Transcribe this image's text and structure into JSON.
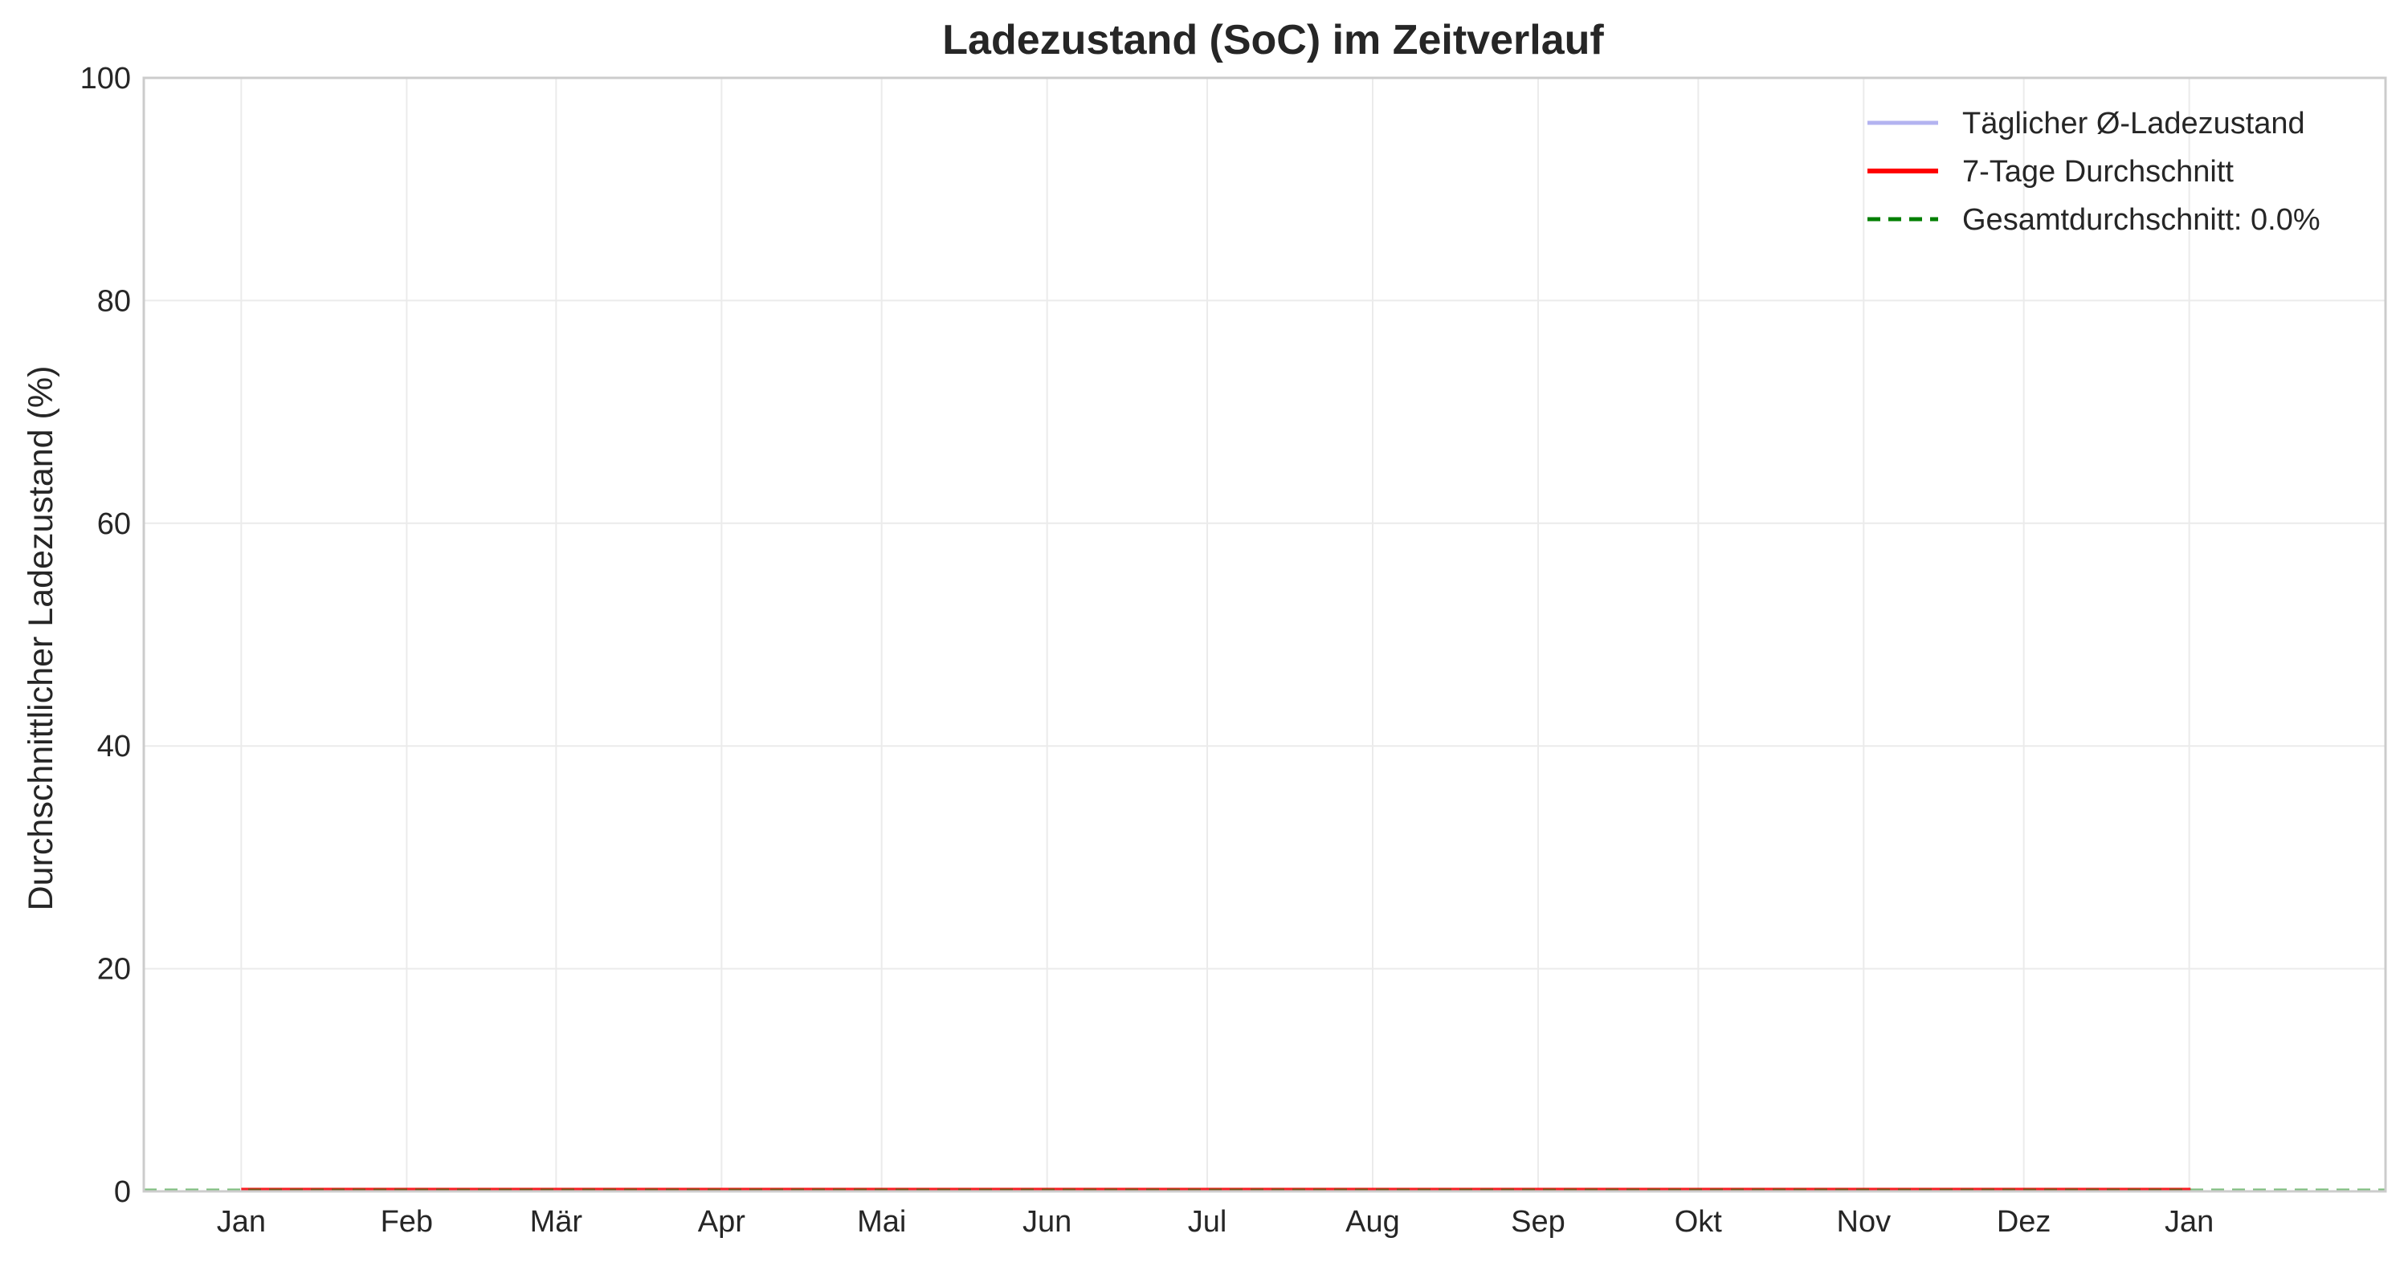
{
  "chart_data": {
    "type": "line",
    "title": "Ladezustand (SoC) im Zeitverlauf",
    "xlabel": "",
    "ylabel": "Durchschnittlicher Ladezustand (%)",
    "ylim": [
      0,
      100
    ],
    "yticks": [
      0,
      20,
      40,
      60,
      80,
      100
    ],
    "xlim": [
      -0.6,
      13.2
    ],
    "xticks": [
      {
        "label": "Jan",
        "pos": 0
      },
      {
        "label": "Feb",
        "pos": 1.0185
      },
      {
        "label": "Mär",
        "pos": 1.9383
      },
      {
        "label": "Apr",
        "pos": 2.9568
      },
      {
        "label": "Mai",
        "pos": 3.9424
      },
      {
        "label": "Jun",
        "pos": 4.9609
      },
      {
        "label": "Jul",
        "pos": 5.9465
      },
      {
        "label": "Aug",
        "pos": 6.965
      },
      {
        "label": "Sep",
        "pos": 7.9835
      },
      {
        "label": "Okt",
        "pos": 8.9691
      },
      {
        "label": "Nov",
        "pos": 9.9876
      },
      {
        "label": "Dez",
        "pos": 10.9733
      },
      {
        "label": "Jan",
        "pos": 11.9918
      }
    ],
    "grid": true,
    "legend_position": "top-right",
    "series": [
      {
        "name": "Täglicher Ø-Ladezustand",
        "color": "#b3b3f0",
        "style": "solid",
        "x": [
          0,
          12
        ],
        "values": [
          0,
          0
        ]
      },
      {
        "name": "7-Tage Durchschnitt",
        "color": "#ff0000",
        "style": "solid",
        "x": [
          0,
          12
        ],
        "values": [
          0,
          0
        ]
      },
      {
        "name": "Gesamtdurchschnitt: 0.0%",
        "color": "#007f00",
        "style": "dashed",
        "kind": "hline",
        "value": 0
      }
    ]
  }
}
